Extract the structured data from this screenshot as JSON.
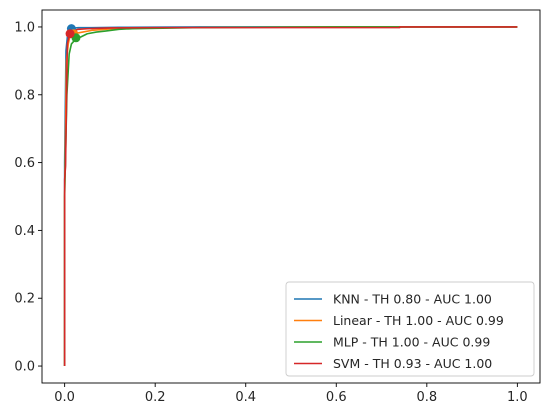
{
  "chart_data": {
    "type": "line",
    "title": "",
    "xlabel": "",
    "ylabel": "",
    "xlim": [
      -0.05,
      1.05
    ],
    "ylim": [
      -0.05,
      1.05
    ],
    "xticks": [
      0.0,
      0.2,
      0.4,
      0.6,
      0.8,
      1.0
    ],
    "yticks": [
      0.0,
      0.2,
      0.4,
      0.6,
      0.8,
      1.0
    ],
    "xtick_labels": [
      "0.0",
      "0.2",
      "0.4",
      "0.6",
      "0.8",
      "1.0"
    ],
    "ytick_labels": [
      "0.0",
      "0.2",
      "0.4",
      "0.6",
      "0.8",
      "1.0"
    ],
    "grid": false,
    "legend_position": "lower-right",
    "series": [
      {
        "name": "KNN - TH 0.80 - AUC 1.00",
        "color": "#1f77b4",
        "x": [
          0.0,
          0.0,
          0.003,
          0.006,
          0.01,
          0.015,
          0.03,
          0.06,
          0.12,
          0.3,
          0.6,
          1.0
        ],
        "y": [
          0.0,
          0.6,
          0.93,
          0.97,
          0.99,
          0.996,
          0.998,
          0.998,
          0.999,
          1.0,
          1.0,
          1.0
        ],
        "marker": [
          0.015,
          0.995
        ]
      },
      {
        "name": "Linear - TH 1.00 - AUC 0.99",
        "color": "#ff7f0e",
        "x": [
          0.0,
          0.0,
          0.004,
          0.008,
          0.012,
          0.02,
          0.04,
          0.06,
          0.1,
          0.15,
          0.3,
          0.6,
          1.0
        ],
        "y": [
          0.0,
          0.5,
          0.9,
          0.95,
          0.975,
          0.98,
          0.985,
          0.99,
          0.994,
          0.997,
          0.998,
          1.0,
          1.0
        ],
        "marker": [
          0.02,
          0.98
        ]
      },
      {
        "name": "MLP - TH 1.00 - AUC 0.99",
        "color": "#2ca02c",
        "x": [
          0.0,
          0.0,
          0.005,
          0.01,
          0.015,
          0.025,
          0.035,
          0.05,
          0.07,
          0.09,
          0.12,
          0.15,
          0.2,
          0.3,
          0.6,
          1.0
        ],
        "y": [
          0.0,
          0.5,
          0.8,
          0.92,
          0.95,
          0.965,
          0.97,
          0.98,
          0.985,
          0.988,
          0.993,
          0.995,
          0.996,
          0.998,
          1.0,
          1.0
        ],
        "marker": [
          0.025,
          0.968
        ]
      },
      {
        "name": "SVM - TH 0.93 - AUC 1.00",
        "color": "#d62728",
        "x": [
          0.0,
          0.0,
          0.002,
          0.004,
          0.006,
          0.01,
          0.015,
          0.02,
          0.03,
          0.05,
          0.1,
          0.2,
          0.4,
          0.74,
          0.74,
          1.0
        ],
        "y": [
          0.0,
          0.55,
          0.59,
          0.77,
          0.95,
          0.975,
          0.985,
          0.99,
          0.993,
          0.995,
          0.997,
          0.998,
          0.998,
          0.998,
          1.0,
          1.0
        ],
        "marker": [
          0.012,
          0.98
        ]
      }
    ]
  }
}
